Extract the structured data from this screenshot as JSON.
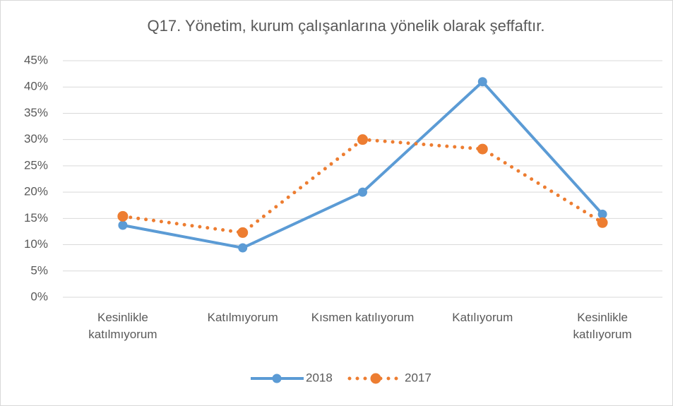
{
  "chart_data": {
    "type": "line",
    "title": "Q17. Yönetim, kurum çalışanlarına yönelik olarak şeffaftır.",
    "categories": [
      "Kesinlikle katılmıyorum",
      "Katılmıyorum",
      "Kısmen katılıyorum",
      "Katılıyorum",
      "Kesinlikle katılıyorum"
    ],
    "series": [
      {
        "name": "2018",
        "color": "#5b9bd5",
        "style": "solid",
        "values": [
          13.7,
          9.4,
          20,
          41,
          15.8
        ]
      },
      {
        "name": "2017",
        "color": "#ed7d31",
        "style": "dotted",
        "values": [
          15.4,
          12.3,
          30,
          28.2,
          14.2
        ]
      }
    ],
    "ylim": [
      0,
      45
    ],
    "yticks": [
      {
        "value": 0,
        "label": "0%"
      },
      {
        "value": 5,
        "label": "5%"
      },
      {
        "value": 10,
        "label": "10%"
      },
      {
        "value": 15,
        "label": "15%"
      },
      {
        "value": 20,
        "label": "20%"
      },
      {
        "value": 25,
        "label": "25%"
      },
      {
        "value": 30,
        "label": "30%"
      },
      {
        "value": 35,
        "label": "35%"
      },
      {
        "value": 40,
        "label": "40%"
      },
      {
        "value": 45,
        "label": "45%"
      }
    ],
    "grid": true,
    "legend": "bottom"
  }
}
